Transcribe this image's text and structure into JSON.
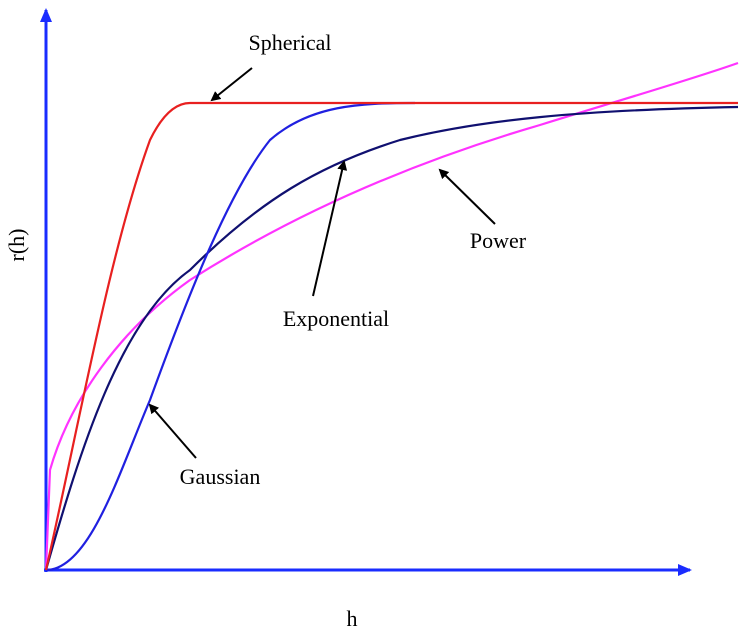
{
  "title": null,
  "axes": {
    "y_label": "r(h)",
    "x_label": "h"
  },
  "curves": [
    {
      "label": "Spherical"
    },
    {
      "label": "Power"
    },
    {
      "label": "Exponential"
    },
    {
      "label": "Gaussian"
    }
  ]
}
